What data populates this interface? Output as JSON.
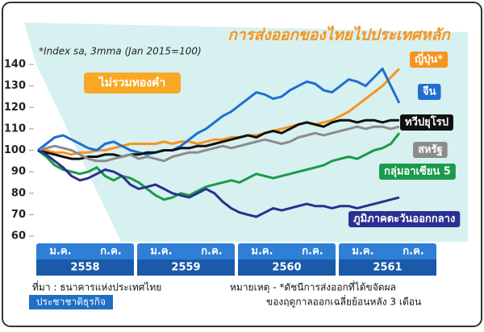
{
  "chart_data": {
    "type": "line",
    "title": "การส่งออกของไทยไปประเทศหลัก",
    "subtitle": "*Index sa, 3mma (Jan 2015=100)",
    "annotation": "ไม่รวมทองคำ",
    "source": "ที่มา : ธนาคารแห่งประเทศไทย",
    "publisher": "ประชาชาติธุรกิจ",
    "note": [
      "หมายเหตุ - *ดัชนีการส่งออกที่ได้ขจัดผล",
      "ของฤดูกาลออกเฉลี่ยย้อนหลัง 3 เดือน"
    ],
    "categories": [
      "ม.ค.",
      null,
      null,
      null,
      null,
      null,
      "ก.ค.",
      null,
      null,
      null,
      null,
      null,
      "ม.ค.",
      null,
      null,
      null,
      null,
      null,
      "ก.ค.",
      null,
      null,
      null,
      null,
      null,
      "ม.ค.",
      null,
      null,
      null,
      null,
      null,
      "ก.ค.",
      null,
      null,
      null,
      null,
      null,
      "ม.ค.",
      null,
      null,
      null,
      null,
      null,
      "ก.ค.",
      null
    ],
    "years": [
      "2558",
      "2559",
      "2560",
      "2561"
    ],
    "ylim": [
      60,
      140
    ],
    "yticks": [
      60,
      70,
      80,
      90,
      100,
      110,
      120,
      130,
      140
    ],
    "grid": false,
    "series": [
      {
        "name": "ญี่ปุ่น*",
        "color": "#f7941d",
        "values": [
          100,
          100,
          99,
          99,
          98,
          99,
          99,
          100,
          100,
          101,
          102,
          103,
          103,
          103,
          103,
          104,
          103,
          104,
          104,
          103,
          104,
          105,
          105,
          106,
          106,
          107,
          107,
          108,
          109,
          110,
          111,
          112,
          113,
          112,
          113,
          114,
          116,
          118,
          121,
          124,
          127,
          130,
          134,
          138
        ]
      },
      {
        "name": "จีน",
        "color": "#1f6fd0",
        "values": [
          100,
          103,
          106,
          107,
          105,
          103,
          101,
          100,
          103,
          104,
          102,
          100,
          99,
          98,
          99,
          100,
          100,
          102,
          105,
          108,
          110,
          113,
          116,
          118,
          121,
          124,
          127,
          126,
          124,
          125,
          128,
          130,
          132,
          131,
          128,
          127,
          130,
          133,
          132,
          130,
          134,
          138,
          130,
          122
        ]
      },
      {
        "name": "ทวีปยุโรป",
        "color": "#111111",
        "values": [
          100,
          99,
          98,
          97,
          96,
          96,
          97,
          97,
          98,
          98,
          97,
          98,
          98,
          99,
          99,
          100,
          100,
          101,
          101,
          102,
          102,
          103,
          104,
          105,
          106,
          107,
          106,
          108,
          109,
          108,
          110,
          112,
          113,
          112,
          111,
          113,
          114,
          114,
          113,
          114,
          114,
          113,
          114,
          114
        ]
      },
      {
        "name": "สหรัฐ",
        "color": "#8c8c8c",
        "values": [
          100,
          101,
          102,
          101,
          100,
          98,
          96,
          95,
          95,
          96,
          97,
          98,
          96,
          97,
          96,
          95,
          97,
          98,
          99,
          99,
          100,
          101,
          102,
          101,
          102,
          103,
          104,
          105,
          104,
          103,
          104,
          106,
          107,
          108,
          107,
          108,
          109,
          110,
          111,
          110,
          111,
          111,
          110,
          111
        ]
      },
      {
        "name": "กลุ่มอาเซียน 5",
        "color": "#1a9a4a",
        "values": [
          100,
          97,
          93,
          91,
          90,
          89,
          90,
          92,
          88,
          86,
          88,
          87,
          85,
          82,
          79,
          77,
          78,
          80,
          79,
          81,
          83,
          84,
          85,
          86,
          85,
          87,
          89,
          88,
          87,
          88,
          89,
          90,
          91,
          92,
          93,
          95,
          96,
          97,
          96,
          98,
          100,
          101,
          103,
          108
        ]
      },
      {
        "name": "ภูมิภาคตะวันออกกลาง",
        "color": "#2b2f8f",
        "values": [
          100,
          98,
          95,
          92,
          88,
          86,
          87,
          89,
          91,
          90,
          88,
          84,
          82,
          83,
          84,
          82,
          80,
          79,
          78,
          80,
          82,
          80,
          76,
          73,
          71,
          70,
          69,
          71,
          73,
          72,
          73,
          74,
          75,
          74,
          74,
          73,
          74,
          74,
          73,
          74,
          75,
          76,
          77,
          78
        ]
      }
    ]
  }
}
